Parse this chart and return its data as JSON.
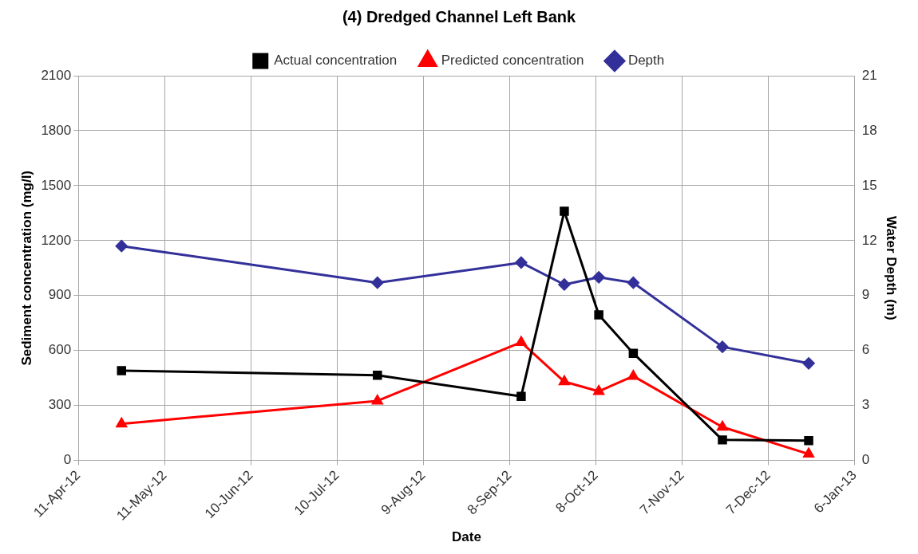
{
  "chart_data": {
    "type": "line",
    "title": "(4) Dredged Channel Left Bank",
    "xlabel": "Date",
    "ylabel": "Sediment concentration (mg/l)",
    "y2label": "Water Depth (m)",
    "x": [
      "2012-04-26",
      "2012-07-24",
      "2012-09-12",
      "2012-09-27",
      "2012-10-09",
      "2012-10-21",
      "2012-11-21",
      "2012-12-21"
    ],
    "series": [
      {
        "name": "Actual concentration",
        "color": "#000000",
        "marker": "square",
        "values": [
          490,
          465,
          350,
          1360,
          795,
          585,
          112,
          108
        ]
      },
      {
        "name": "Predicted concentration",
        "color": "#ff0000",
        "marker": "triangle",
        "values": [
          200,
          325,
          645,
          430,
          377,
          460,
          182,
          35
        ]
      },
      {
        "name": "Depth",
        "color": "#33309a",
        "marker": "diamond",
        "axis": "y2",
        "values": [
          11.7,
          9.7,
          10.8,
          9.6,
          10.0,
          9.7,
          6.2,
          5.3
        ]
      }
    ],
    "xlim": [
      "2012-04-11",
      "2013-01-06"
    ],
    "xticks": [
      {
        "value": "2012-04-11",
        "label": "11-Apr-12"
      },
      {
        "value": "2012-05-11",
        "label": "11-May-12"
      },
      {
        "value": "2012-06-10",
        "label": "10-Jun-12"
      },
      {
        "value": "2012-07-10",
        "label": "10-Jul-12"
      },
      {
        "value": "2012-08-09",
        "label": "9-Aug-12"
      },
      {
        "value": "2012-09-08",
        "label": "8-Sep-12"
      },
      {
        "value": "2012-10-08",
        "label": "8-Oct-12"
      },
      {
        "value": "2012-11-07",
        "label": "7-Nov-12"
      },
      {
        "value": "2012-12-07",
        "label": "7-Dec-12"
      },
      {
        "value": "2013-01-06",
        "label": "6-Jan-13"
      }
    ],
    "ylim": [
      0,
      2100
    ],
    "yticks": [
      0,
      300,
      600,
      900,
      1200,
      1500,
      1800,
      2100
    ],
    "y2lim": [
      0,
      21
    ],
    "y2ticks": [
      0,
      3,
      6,
      9,
      12,
      15,
      18,
      21
    ],
    "grid": true,
    "legend": "top",
    "line_style": "solid"
  }
}
